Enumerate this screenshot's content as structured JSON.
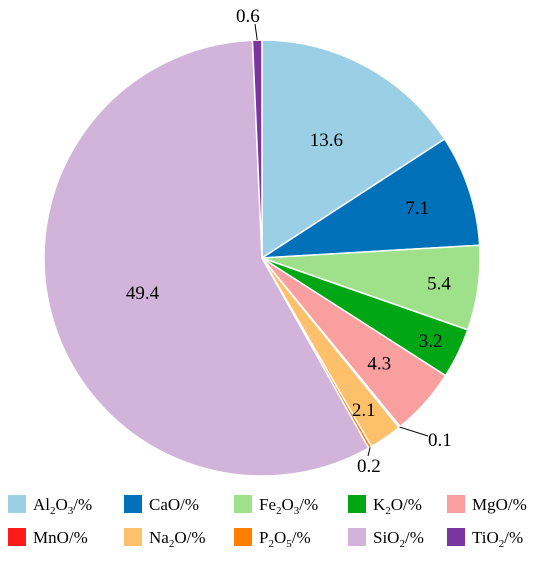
{
  "chart_data": {
    "type": "pie",
    "title": "",
    "start_angle_deg": 0,
    "direction": "clockwise",
    "legend_position": "bottom",
    "slices": [
      {
        "formula": [
          "Al",
          {
            "sub": "2"
          },
          "O",
          {
            "sub": "3"
          },
          "/%"
        ],
        "value": 13.6,
        "label": "13.6",
        "color": "#9bcfe6"
      },
      {
        "formula": [
          "CaO/%"
        ],
        "value": 7.1,
        "label": "7.1",
        "color": "#0070b8"
      },
      {
        "formula": [
          "Fe",
          {
            "sub": "2"
          },
          "O",
          {
            "sub": "3"
          },
          "/%"
        ],
        "value": 5.4,
        "label": "5.4",
        "color": "#9fe08a"
      },
      {
        "formula": [
          "K",
          {
            "sub": "2"
          },
          "O/%"
        ],
        "value": 3.2,
        "label": "3.2",
        "color": "#00a614"
      },
      {
        "formula": [
          "MgO/%"
        ],
        "value": 4.3,
        "label": "4.3",
        "color": "#fa9fa0"
      },
      {
        "formula": [
          "MnO/%"
        ],
        "value": 0.1,
        "label": "0.1",
        "color": "#ff1a1a"
      },
      {
        "formula": [
          "Na",
          {
            "sub": "2"
          },
          "O/%"
        ],
        "value": 2.1,
        "label": "2.1",
        "color": "#ffc06b"
      },
      {
        "formula": [
          "P",
          {
            "sub": "2"
          },
          "O",
          {
            "sub": "5"
          },
          "/%"
        ],
        "value": 0.2,
        "label": "0.2",
        "color": "#ff8000"
      },
      {
        "formula": [
          "SiO",
          {
            "sub": "2"
          },
          "/%"
        ],
        "value": 49.4,
        "label": "49.4",
        "color": "#d2b3d9"
      },
      {
        "formula": [
          "TiO",
          {
            "sub": "2"
          },
          "/%"
        ],
        "value": 0.6,
        "label": "0.6",
        "color": "#7a35a0"
      }
    ]
  }
}
